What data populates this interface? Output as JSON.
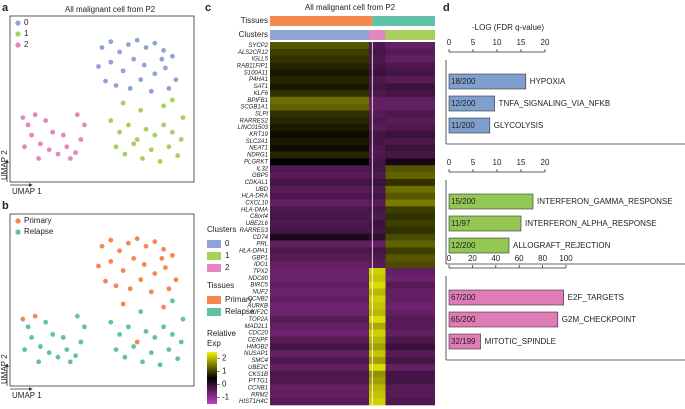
{
  "chart_data": [
    {
      "panel": "a",
      "type": "scatter",
      "title": "All malignant cell from P2",
      "xlabel": "UMAP 1",
      "ylabel": "UMAP 2",
      "xlim": [
        0,
        100
      ],
      "ylim": [
        0,
        100
      ],
      "series": [
        {
          "name": "0",
          "color": "#8fa3d6",
          "x": [
            50,
            55,
            60,
            65,
            70,
            75,
            80,
            85,
            90,
            48,
            55,
            62,
            68,
            74,
            80,
            86,
            92,
            58,
            66,
            78,
            88,
            52,
            72,
            84
          ],
          "y": [
            88,
            92,
            85,
            90,
            93,
            88,
            91,
            86,
            82,
            75,
            78,
            72,
            80,
            76,
            70,
            74,
            66,
            62,
            60,
            58,
            60,
            65,
            66,
            80
          ]
        },
        {
          "name": "1",
          "color": "#a7d05d",
          "x": [
            55,
            60,
            65,
            70,
            75,
            80,
            85,
            90,
            95,
            58,
            63,
            68,
            73,
            78,
            83,
            88,
            93,
            96,
            72,
            62,
            85,
            90
          ],
          "y": [
            38,
            30,
            35,
            25,
            32,
            28,
            35,
            30,
            25,
            20,
            15,
            22,
            12,
            18,
            10,
            20,
            14,
            40,
            45,
            50,
            48,
            52
          ]
        },
        {
          "name": "2",
          "color": "#e686c0",
          "x": [
            5,
            8,
            12,
            10,
            15,
            20,
            25,
            30,
            35,
            38,
            22,
            18,
            28,
            32,
            6,
            14,
            40,
            36
          ],
          "y": [
            40,
            35,
            42,
            28,
            22,
            18,
            15,
            20,
            16,
            25,
            30,
            38,
            28,
            12,
            20,
            12,
            35,
            42
          ]
        }
      ]
    },
    {
      "panel": "b",
      "type": "scatter",
      "xlabel": "UMAP 1",
      "ylabel": "UMAP 2",
      "xlim": [
        0,
        100
      ],
      "ylim": [
        0,
        100
      ],
      "series": [
        {
          "name": "Primary",
          "color": "#f4874f",
          "x": [
            50,
            55,
            60,
            65,
            70,
            75,
            80,
            85,
            90,
            48,
            55,
            62,
            68,
            74,
            80,
            86,
            92,
            58,
            66,
            78,
            88,
            52,
            72,
            84,
            62,
            85,
            12,
            5,
            70
          ],
          "y": [
            88,
            92,
            85,
            90,
            93,
            88,
            91,
            86,
            82,
            75,
            78,
            72,
            80,
            76,
            70,
            74,
            66,
            62,
            60,
            58,
            60,
            65,
            66,
            80,
            50,
            48,
            42,
            40,
            25
          ]
        },
        {
          "name": "Relapse",
          "color": "#5fc1a6",
          "x": [
            55,
            60,
            65,
            75,
            80,
            85,
            90,
            95,
            58,
            63,
            68,
            73,
            78,
            83,
            88,
            93,
            96,
            72,
            90,
            8,
            10,
            15,
            20,
            25,
            30,
            35,
            38,
            22,
            18,
            28,
            32,
            6,
            14,
            40,
            36
          ],
          "y": [
            38,
            30,
            35,
            32,
            28,
            35,
            30,
            25,
            20,
            15,
            22,
            12,
            18,
            10,
            20,
            14,
            40,
            45,
            52,
            35,
            28,
            22,
            18,
            15,
            20,
            16,
            25,
            30,
            38,
            28,
            12,
            20,
            12,
            35,
            42
          ]
        }
      ]
    },
    {
      "panel": "c",
      "type": "heatmap",
      "title": "All malignant cell from P2",
      "annotation_rows": [
        "Tissues",
        "Clusters"
      ],
      "genes": [
        "SYCP2",
        "ALS2CR12",
        "IGLL5",
        "RAB11FIP1",
        "S100A11",
        "P4HA1",
        "SAT1",
        "KLF6",
        "BPIFB1",
        "SCGB1A1",
        "SLPI",
        "RARRES2",
        "LINC01503",
        "KRT19",
        "SLC2A1",
        "NEAT1",
        "NDRG1",
        "PLGRKT",
        "IL32",
        "GBP5",
        "CDKAL1",
        "UBD",
        "HLA-DRA",
        "CXCL10",
        "HLA-DMA",
        "C8orf4",
        "UBE2L6",
        "RARRES3",
        "CD74",
        "PRL",
        "HLA-DPA1",
        "GBP1",
        "IDO1",
        "TPX2",
        "NDC80",
        "BIRC5",
        "NUF2",
        "CCNB2",
        "AURKB",
        "KIF2C",
        "TOP2A",
        "MAD2L1",
        "CDC20",
        "CENPF",
        "HMGB2",
        "NUSAP1",
        "SMC4",
        "UBE2C",
        "CKS1B",
        "PTTG1",
        "CCNB1",
        "RRM2",
        "HIST1H4C"
      ],
      "clusters_legend": {
        "title": "Clusters",
        "items": [
          {
            "name": "0",
            "color": "#8fa3d6"
          },
          {
            "name": "1",
            "color": "#a7d05d"
          },
          {
            "name": "2",
            "color": "#e686c0"
          }
        ]
      },
      "tissues_legend": {
        "title": "Tissues",
        "items": [
          {
            "name": "Primary",
            "color": "#f4874f"
          },
          {
            "name": "Relapse",
            "color": "#5fc1a6"
          }
        ]
      },
      "colorbar": {
        "title_lines": [
          "Relative",
          "Exp"
        ],
        "ticks": [
          -1,
          0,
          1,
          2
        ],
        "clim": [
          -1.5,
          2.5
        ],
        "colors": [
          "#c43dc4",
          "#000000",
          "#f5f500"
        ]
      },
      "values": [
        [
          1.2,
          -0.5,
          -0.3
        ],
        [
          1.0,
          -0.4,
          -0.2
        ],
        [
          0.9,
          -0.5,
          -0.3
        ],
        [
          0.8,
          -0.3,
          -0.2
        ],
        [
          0.7,
          -0.2,
          -0.1
        ],
        [
          0.8,
          -0.4,
          -0.3
        ],
        [
          0.7,
          -0.1,
          -0.2
        ],
        [
          0.9,
          -0.2,
          -0.3
        ],
        [
          1.4,
          -0.5,
          -0.5
        ],
        [
          1.3,
          -0.5,
          -0.5
        ],
        [
          0.9,
          -0.3,
          -0.4
        ],
        [
          0.8,
          -0.4,
          -0.3
        ],
        [
          0.7,
          -0.3,
          -0.4
        ],
        [
          0.6,
          -0.1,
          -0.2
        ],
        [
          0.7,
          -0.3,
          -0.2
        ],
        [
          0.6,
          -0.1,
          -0.3
        ],
        [
          0.8,
          -0.2,
          -0.3
        ],
        [
          0.5,
          0.3,
          -0.2
        ],
        [
          -0.3,
          1.2,
          -0.2
        ],
        [
          -0.4,
          1.3,
          -0.3
        ],
        [
          -0.2,
          0.9,
          -0.1
        ],
        [
          -0.4,
          1.4,
          -0.3
        ],
        [
          -0.3,
          1.2,
          -0.2
        ],
        [
          -0.5,
          1.5,
          -0.4
        ],
        [
          -0.3,
          1.0,
          -0.2
        ],
        [
          -0.2,
          0.9,
          -0.3
        ],
        [
          -0.3,
          1.0,
          -0.1
        ],
        [
          -0.2,
          0.9,
          -0.2
        ],
        [
          0.2,
          1.1,
          0.0
        ],
        [
          -0.5,
          1.3,
          -0.5
        ],
        [
          -0.3,
          1.0,
          -0.2
        ],
        [
          -0.4,
          1.2,
          -0.3
        ],
        [
          -0.5,
          1.1,
          -0.4
        ],
        [
          -0.6,
          -0.5,
          2.2
        ],
        [
          -0.6,
          -0.6,
          2.1
        ],
        [
          -0.5,
          -0.4,
          2.3
        ],
        [
          -0.6,
          -0.5,
          2.0
        ],
        [
          -0.5,
          -0.5,
          2.2
        ],
        [
          -0.6,
          -0.6,
          2.1
        ],
        [
          -0.6,
          -0.5,
          2.0
        ],
        [
          -0.4,
          -0.4,
          2.3
        ],
        [
          -0.5,
          -0.4,
          1.9
        ],
        [
          -0.6,
          -0.5,
          2.2
        ],
        [
          -0.4,
          -0.3,
          2.0
        ],
        [
          -0.2,
          -0.1,
          1.8
        ],
        [
          -0.5,
          -0.4,
          2.1
        ],
        [
          -0.3,
          -0.2,
          1.8
        ],
        [
          -0.5,
          -0.5,
          2.3
        ],
        [
          -0.3,
          -0.2,
          1.7
        ],
        [
          -0.3,
          -0.2,
          1.8
        ],
        [
          -0.5,
          -0.4,
          2.0
        ],
        [
          -0.5,
          -0.4,
          2.1
        ],
        [
          -0.4,
          -0.3,
          2.2
        ]
      ]
    },
    {
      "panel": "d",
      "type": "barh",
      "xlabel": "-LOG (FDR q-value)",
      "color": "#7f9fcf",
      "xlim": [
        0,
        20
      ],
      "xticks": [
        0,
        5,
        10,
        15,
        20
      ],
      "categories": [
        "HYPOXIA",
        "TNFA_SIGNALING_VIA_NFKB",
        "GLYCOLYSIS"
      ],
      "values": [
        16,
        9.5,
        8.5
      ],
      "bar_labels": [
        "18/200",
        "12/200",
        "11/200"
      ]
    },
    {
      "type": "barh",
      "color": "#93c754",
      "xlim": [
        0,
        20
      ],
      "xticks": [
        0,
        5,
        10,
        15,
        20
      ],
      "categories": [
        "INTERFERON_GAMMA_RESPONSE",
        "INTERFERON_ALPHA_RESPONSE",
        "ALLOGRAFT_REJECTION"
      ],
      "values": [
        17.5,
        15,
        12.5
      ],
      "bar_labels": [
        "15/200",
        "11/97",
        "12/200"
      ]
    },
    {
      "type": "barh",
      "color": "#e07bb8",
      "xlim": [
        0,
        100
      ],
      "xticks": [
        0,
        20,
        40,
        60,
        80,
        100
      ],
      "categories": [
        "E2F_TARGETS",
        "G2M_CHECKPOINT",
        "MITOTIC_SPINDLE"
      ],
      "values": [
        98,
        93,
        27
      ],
      "bar_labels": [
        "67/200",
        "65/200",
        "32/199"
      ]
    }
  ]
}
